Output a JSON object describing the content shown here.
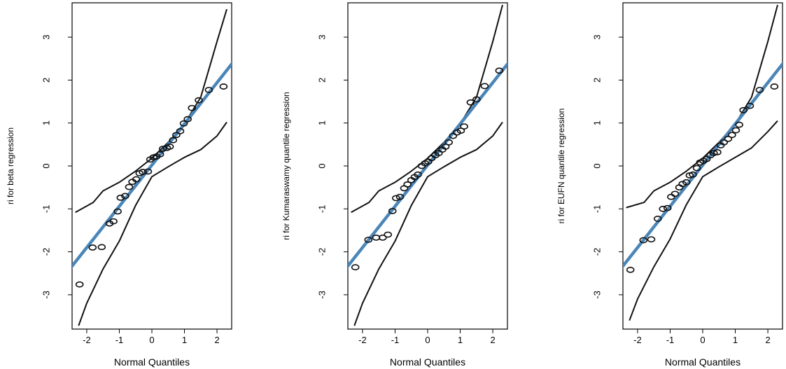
{
  "chart_data": [
    {
      "type": "scatter",
      "title": "",
      "xlabel": "Normal Quantiles",
      "ylabel": "ri for beta regression",
      "xlim": [
        -2.45,
        2.45
      ],
      "ylim": [
        -3.8,
        3.8
      ],
      "xticks": [
        -2,
        -1,
        0,
        1,
        2
      ],
      "yticks": [
        -3,
        -2,
        -1,
        0,
        1,
        2,
        3
      ],
      "xtick_labels": [
        "-2",
        "-1",
        "0",
        "1",
        "2"
      ],
      "ytick_labels": [
        "-3",
        "-2",
        "-1",
        "0",
        "1",
        "2",
        "3"
      ],
      "grid": false,
      "points": [
        {
          "x": -2.22,
          "y": -2.76
        },
        {
          "x": -1.82,
          "y": -1.9
        },
        {
          "x": -1.54,
          "y": -1.89
        },
        {
          "x": -1.3,
          "y": -1.34
        },
        {
          "x": -1.18,
          "y": -1.29
        },
        {
          "x": -1.05,
          "y": -1.06
        },
        {
          "x": -0.96,
          "y": -0.74
        },
        {
          "x": -0.82,
          "y": -0.7
        },
        {
          "x": -0.7,
          "y": -0.49
        },
        {
          "x": -0.6,
          "y": -0.37
        },
        {
          "x": -0.48,
          "y": -0.31
        },
        {
          "x": -0.38,
          "y": -0.17
        },
        {
          "x": -0.28,
          "y": -0.14
        },
        {
          "x": -0.12,
          "y": -0.13
        },
        {
          "x": -0.05,
          "y": 0.15
        },
        {
          "x": 0.05,
          "y": 0.2
        },
        {
          "x": 0.14,
          "y": 0.22
        },
        {
          "x": 0.25,
          "y": 0.27
        },
        {
          "x": 0.34,
          "y": 0.4
        },
        {
          "x": 0.46,
          "y": 0.42
        },
        {
          "x": 0.55,
          "y": 0.45
        },
        {
          "x": 0.65,
          "y": 0.6
        },
        {
          "x": 0.75,
          "y": 0.72
        },
        {
          "x": 0.87,
          "y": 0.81
        },
        {
          "x": 0.98,
          "y": 0.99
        },
        {
          "x": 1.1,
          "y": 1.09
        },
        {
          "x": 1.23,
          "y": 1.35
        },
        {
          "x": 1.44,
          "y": 1.53
        },
        {
          "x": 1.75,
          "y": 1.77
        },
        {
          "x": 2.2,
          "y": 1.85
        }
      ],
      "reference_line": {
        "intercept": 0.02,
        "slope": 0.96,
        "color": "#4b86b8"
      },
      "envelope_upper": [
        {
          "x": -2.35,
          "y": -1.08
        },
        {
          "x": -1.8,
          "y": -0.85
        },
        {
          "x": -1.5,
          "y": -0.58
        },
        {
          "x": -1.0,
          "y": -0.38
        },
        {
          "x": -0.5,
          "y": -0.12
        },
        {
          "x": 0.0,
          "y": 0.18
        },
        {
          "x": 0.5,
          "y": 0.55
        },
        {
          "x": 1.0,
          "y": 0.98
        },
        {
          "x": 1.5,
          "y": 1.6
        },
        {
          "x": 2.0,
          "y": 2.9
        },
        {
          "x": 2.3,
          "y": 3.65
        }
      ],
      "envelope_lower": [
        {
          "x": -2.25,
          "y": -3.72
        },
        {
          "x": -2.0,
          "y": -3.2
        },
        {
          "x": -1.5,
          "y": -2.4
        },
        {
          "x": -1.0,
          "y": -1.75
        },
        {
          "x": -0.5,
          "y": -0.92
        },
        {
          "x": 0.0,
          "y": -0.25
        },
        {
          "x": 0.5,
          "y": -0.02
        },
        {
          "x": 1.0,
          "y": 0.2
        },
        {
          "x": 1.5,
          "y": 0.38
        },
        {
          "x": 2.0,
          "y": 0.7
        },
        {
          "x": 2.3,
          "y": 1.02
        }
      ]
    },
    {
      "type": "scatter",
      "title": "",
      "xlabel": "Normal Quantiles",
      "ylabel": "ri for Kumaraswamy quantile regression",
      "xlim": [
        -2.45,
        2.45
      ],
      "ylim": [
        -3.8,
        3.8
      ],
      "xticks": [
        -2,
        -1,
        0,
        1,
        2
      ],
      "yticks": [
        -3,
        -2,
        -1,
        0,
        1,
        2,
        3
      ],
      "xtick_labels": [
        "-2",
        "-1",
        "0",
        "1",
        "2"
      ],
      "ytick_labels": [
        "-3",
        "-2",
        "-1",
        "0",
        "1",
        "2",
        "3"
      ],
      "grid": false,
      "points": [
        {
          "x": -2.22,
          "y": -2.36
        },
        {
          "x": -1.82,
          "y": -1.72
        },
        {
          "x": -1.58,
          "y": -1.67
        },
        {
          "x": -1.38,
          "y": -1.67
        },
        {
          "x": -1.22,
          "y": -1.6
        },
        {
          "x": -1.08,
          "y": -1.05
        },
        {
          "x": -0.97,
          "y": -0.75
        },
        {
          "x": -0.85,
          "y": -0.72
        },
        {
          "x": -0.72,
          "y": -0.52
        },
        {
          "x": -0.62,
          "y": -0.43
        },
        {
          "x": -0.5,
          "y": -0.33
        },
        {
          "x": -0.4,
          "y": -0.26
        },
        {
          "x": -0.3,
          "y": -0.2
        },
        {
          "x": -0.18,
          "y": 0.0
        },
        {
          "x": -0.08,
          "y": 0.06
        },
        {
          "x": 0.02,
          "y": 0.1
        },
        {
          "x": 0.12,
          "y": 0.18
        },
        {
          "x": 0.24,
          "y": 0.25
        },
        {
          "x": 0.34,
          "y": 0.3
        },
        {
          "x": 0.45,
          "y": 0.38
        },
        {
          "x": 0.55,
          "y": 0.45
        },
        {
          "x": 0.65,
          "y": 0.55
        },
        {
          "x": 0.78,
          "y": 0.7
        },
        {
          "x": 0.9,
          "y": 0.78
        },
        {
          "x": 1.02,
          "y": 0.82
        },
        {
          "x": 1.12,
          "y": 0.92
        },
        {
          "x": 1.32,
          "y": 1.48
        },
        {
          "x": 1.5,
          "y": 1.55
        },
        {
          "x": 1.75,
          "y": 1.86
        },
        {
          "x": 2.2,
          "y": 2.22
        }
      ],
      "reference_line": {
        "intercept": 0.02,
        "slope": 0.96,
        "color": "#4b86b8"
      },
      "envelope_upper": [
        {
          "x": -2.35,
          "y": -1.08
        },
        {
          "x": -1.8,
          "y": -0.85
        },
        {
          "x": -1.5,
          "y": -0.58
        },
        {
          "x": -1.0,
          "y": -0.38
        },
        {
          "x": -0.5,
          "y": -0.12
        },
        {
          "x": 0.0,
          "y": 0.18
        },
        {
          "x": 0.5,
          "y": 0.55
        },
        {
          "x": 1.0,
          "y": 0.98
        },
        {
          "x": 1.5,
          "y": 1.6
        },
        {
          "x": 2.0,
          "y": 2.9
        },
        {
          "x": 2.3,
          "y": 3.75
        }
      ],
      "envelope_lower": [
        {
          "x": -2.25,
          "y": -3.72
        },
        {
          "x": -2.0,
          "y": -3.2
        },
        {
          "x": -1.5,
          "y": -2.4
        },
        {
          "x": -1.0,
          "y": -1.75
        },
        {
          "x": -0.5,
          "y": -0.92
        },
        {
          "x": 0.0,
          "y": -0.25
        },
        {
          "x": 0.5,
          "y": -0.02
        },
        {
          "x": 1.0,
          "y": 0.2
        },
        {
          "x": 1.5,
          "y": 0.38
        },
        {
          "x": 2.0,
          "y": 0.7
        },
        {
          "x": 2.3,
          "y": 1.02
        }
      ]
    },
    {
      "type": "scatter",
      "title": "",
      "xlabel": "Normal Quantiles",
      "ylabel": "ri for EUFN quantile regression",
      "xlim": [
        -2.45,
        2.45
      ],
      "ylim": [
        -3.8,
        3.8
      ],
      "xticks": [
        -2,
        -1,
        0,
        1,
        2
      ],
      "yticks": [
        -3,
        -2,
        -1,
        0,
        1,
        2,
        3
      ],
      "xtick_labels": [
        "-2",
        "-1",
        "0",
        "1",
        "2"
      ],
      "ytick_labels": [
        "-3",
        "-2",
        "-1",
        "0",
        "1",
        "2",
        "3"
      ],
      "grid": false,
      "points": [
        {
          "x": -2.22,
          "y": -2.42
        },
        {
          "x": -1.82,
          "y": -1.73
        },
        {
          "x": -1.58,
          "y": -1.71
        },
        {
          "x": -1.38,
          "y": -1.23
        },
        {
          "x": -1.22,
          "y": -1.0
        },
        {
          "x": -1.08,
          "y": -0.98
        },
        {
          "x": -0.97,
          "y": -0.72
        },
        {
          "x": -0.85,
          "y": -0.65
        },
        {
          "x": -0.72,
          "y": -0.5
        },
        {
          "x": -0.62,
          "y": -0.42
        },
        {
          "x": -0.5,
          "y": -0.38
        },
        {
          "x": -0.4,
          "y": -0.22
        },
        {
          "x": -0.3,
          "y": -0.2
        },
        {
          "x": -0.18,
          "y": -0.05
        },
        {
          "x": -0.08,
          "y": 0.08
        },
        {
          "x": 0.02,
          "y": 0.12
        },
        {
          "x": 0.12,
          "y": 0.16
        },
        {
          "x": 0.24,
          "y": 0.25
        },
        {
          "x": 0.34,
          "y": 0.3
        },
        {
          "x": 0.45,
          "y": 0.32
        },
        {
          "x": 0.55,
          "y": 0.48
        },
        {
          "x": 0.65,
          "y": 0.55
        },
        {
          "x": 0.78,
          "y": 0.63
        },
        {
          "x": 0.9,
          "y": 0.72
        },
        {
          "x": 1.02,
          "y": 0.83
        },
        {
          "x": 1.12,
          "y": 0.96
        },
        {
          "x": 1.25,
          "y": 1.3
        },
        {
          "x": 1.45,
          "y": 1.4
        },
        {
          "x": 1.75,
          "y": 1.77
        },
        {
          "x": 2.2,
          "y": 1.85
        }
      ],
      "reference_line": {
        "intercept": 0.02,
        "slope": 0.96,
        "color": "#4b86b8"
      },
      "envelope_upper": [
        {
          "x": -2.35,
          "y": -0.97
        },
        {
          "x": -1.8,
          "y": -0.85
        },
        {
          "x": -1.5,
          "y": -0.58
        },
        {
          "x": -1.0,
          "y": -0.38
        },
        {
          "x": -0.5,
          "y": -0.12
        },
        {
          "x": 0.0,
          "y": 0.18
        },
        {
          "x": 0.5,
          "y": 0.55
        },
        {
          "x": 1.0,
          "y": 0.98
        },
        {
          "x": 1.5,
          "y": 1.6
        },
        {
          "x": 2.0,
          "y": 2.9
        },
        {
          "x": 2.3,
          "y": 3.75
        }
      ],
      "envelope_lower": [
        {
          "x": -2.25,
          "y": -3.6
        },
        {
          "x": -2.0,
          "y": -3.1
        },
        {
          "x": -1.5,
          "y": -2.35
        },
        {
          "x": -1.0,
          "y": -1.7
        },
        {
          "x": -0.5,
          "y": -0.9
        },
        {
          "x": 0.0,
          "y": -0.25
        },
        {
          "x": 0.5,
          "y": -0.02
        },
        {
          "x": 1.0,
          "y": 0.2
        },
        {
          "x": 1.5,
          "y": 0.42
        },
        {
          "x": 2.0,
          "y": 0.8
        },
        {
          "x": 2.3,
          "y": 1.05
        }
      ]
    }
  ]
}
